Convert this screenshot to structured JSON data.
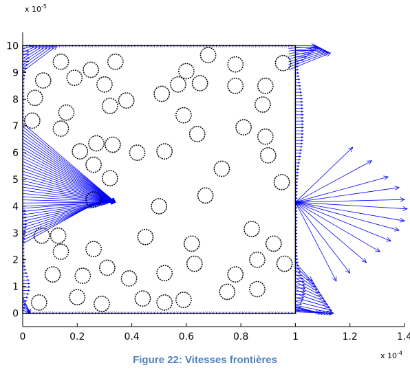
{
  "caption": "Figure 22: Vitesses frontières",
  "chart_data": {
    "type": "quiver",
    "title": "",
    "xlabel": "",
    "ylabel": "",
    "x_multiplier_label": "x 10",
    "x_multiplier_exponent": "-4",
    "y_multiplier_label": "x 10",
    "y_multiplier_exponent": "-5",
    "xlim": [
      0,
      1.4
    ],
    "ylim": [
      -0.5,
      10.5
    ],
    "x_ticks": [
      0,
      0.2,
      0.4,
      0.6,
      0.8,
      1,
      1.2,
      1.4
    ],
    "x_tick_labels": [
      "0",
      "0.2",
      "0.4",
      "0.6",
      "0.8",
      "1",
      "1.2",
      "1.4"
    ],
    "y_ticks": [
      0,
      1,
      2,
      3,
      4,
      5,
      6,
      7,
      8,
      9,
      10
    ],
    "y_tick_labels": [
      "0",
      "1",
      "2",
      "3",
      "4",
      "5",
      "6",
      "7",
      "8",
      "9",
      "10"
    ],
    "domain_box": {
      "x": [
        0,
        1
      ],
      "y": [
        0,
        10
      ]
    },
    "box_color": "#000000",
    "arrow_color": "#0000ff",
    "circle_color": "#000000",
    "circle_radius": 0.028,
    "circles": [
      [
        0.075,
        8.7
      ],
      [
        0.14,
        9.4
      ],
      [
        0.19,
        8.8
      ],
      [
        0.25,
        9.1
      ],
      [
        0.34,
        9.4
      ],
      [
        0.3,
        8.55
      ],
      [
        0.045,
        8.05
      ],
      [
        0.16,
        7.5
      ],
      [
        0.14,
        6.9
      ],
      [
        0.035,
        7.2
      ],
      [
        0.32,
        7.75
      ],
      [
        0.38,
        7.95
      ],
      [
        0.21,
        6.05
      ],
      [
        0.27,
        6.35
      ],
      [
        0.33,
        6.3
      ],
      [
        0.26,
        5.55
      ],
      [
        0.32,
        5.05
      ],
      [
        0.42,
        6.0
      ],
      [
        0.52,
        6.05
      ],
      [
        0.5,
        4.0
      ],
      [
        0.26,
        4.25
      ],
      [
        0.07,
        2.9
      ],
      [
        0.13,
        2.9
      ],
      [
        0.14,
        2.3
      ],
      [
        0.26,
        2.4
      ],
      [
        0.45,
        2.85
      ],
      [
        0.62,
        2.6
      ],
      [
        0.63,
        1.85
      ],
      [
        0.11,
        1.45
      ],
      [
        0.22,
        1.4
      ],
      [
        0.31,
        1.7
      ],
      [
        0.39,
        1.3
      ],
      [
        0.52,
        1.5
      ],
      [
        0.06,
        0.4
      ],
      [
        0.2,
        0.6
      ],
      [
        0.29,
        0.35
      ],
      [
        0.44,
        0.55
      ],
      [
        0.52,
        0.4
      ],
      [
        0.59,
        0.5
      ],
      [
        0.75,
        0.8
      ],
      [
        0.78,
        1.45
      ],
      [
        0.86,
        0.9
      ],
      [
        0.86,
        2.0
      ],
      [
        0.84,
        3.15
      ],
      [
        0.92,
        2.6
      ],
      [
        0.96,
        1.85
      ],
      [
        0.67,
        4.4
      ],
      [
        0.73,
        5.4
      ],
      [
        0.64,
        6.7
      ],
      [
        0.59,
        7.4
      ],
      [
        0.57,
        8.55
      ],
      [
        0.51,
        8.2
      ],
      [
        0.6,
        9.05
      ],
      [
        0.65,
        8.6
      ],
      [
        0.68,
        9.65
      ],
      [
        0.78,
        9.3
      ],
      [
        0.78,
        8.5
      ],
      [
        0.89,
        8.5
      ],
      [
        0.88,
        7.8
      ],
      [
        0.81,
        6.95
      ],
      [
        0.89,
        6.6
      ],
      [
        0.9,
        5.9
      ],
      [
        0.95,
        4.9
      ],
      [
        0.955,
        9.35
      ]
    ],
    "left_wedge": {
      "origin": [
        0.34,
        4.15
      ],
      "y_range": [
        4.0,
        7.1
      ]
    },
    "right_fan": {
      "origin": [
        1.0,
        4.15
      ],
      "tips": [
        [
          1.21,
          6.2
        ],
        [
          1.28,
          5.7
        ],
        [
          1.34,
          5.1
        ],
        [
          1.38,
          4.7
        ],
        [
          1.4,
          4.25
        ],
        [
          1.41,
          3.9
        ],
        [
          1.4,
          3.45
        ],
        [
          1.38,
          3.1
        ],
        [
          1.35,
          2.7
        ],
        [
          1.31,
          2.3
        ],
        [
          1.26,
          1.9
        ],
        [
          1.2,
          1.5
        ],
        [
          1.15,
          1.2
        ]
      ]
    }
  }
}
